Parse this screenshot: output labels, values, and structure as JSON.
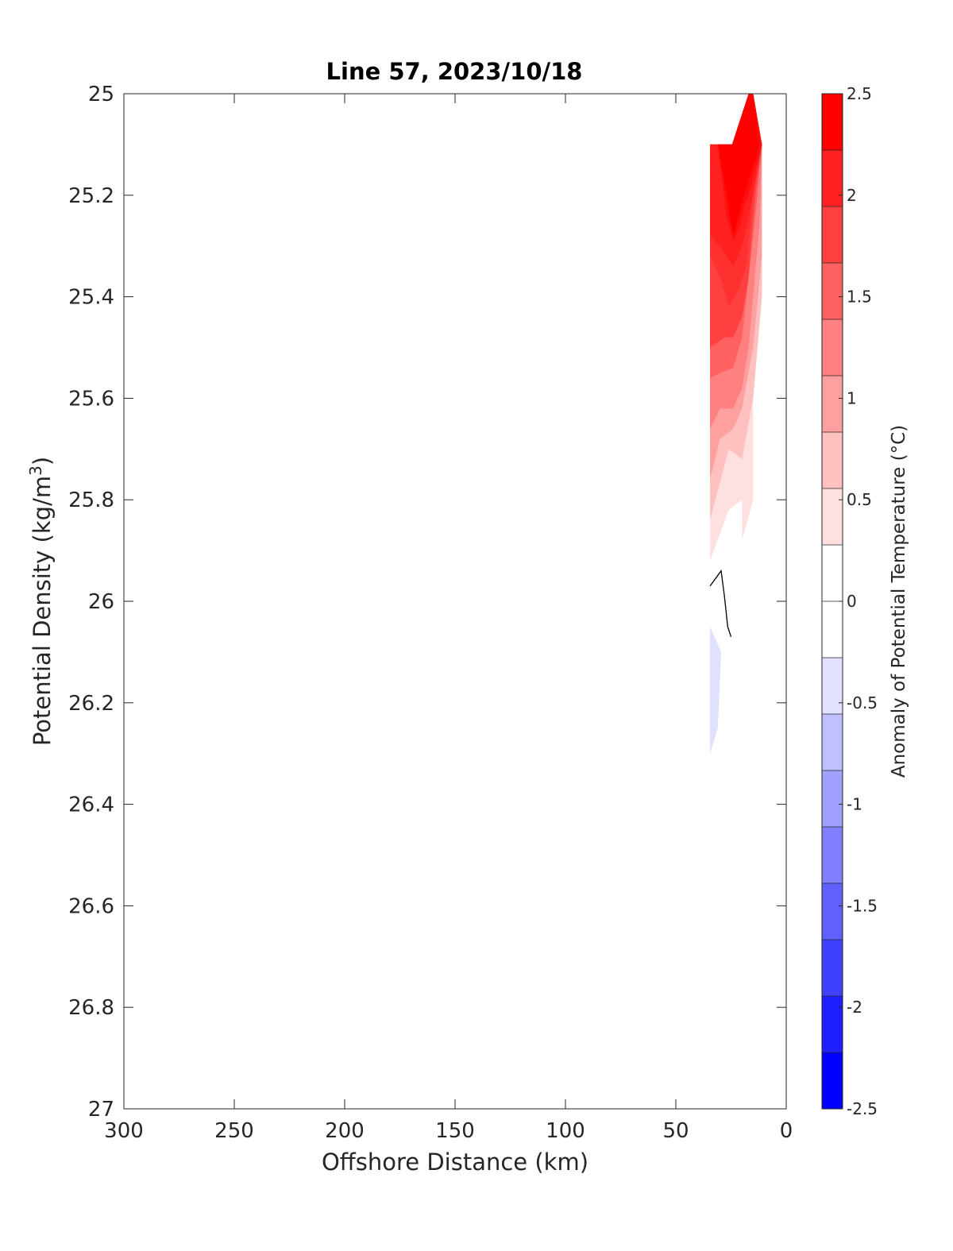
{
  "chart_data": {
    "type": "contour",
    "title": "Line 57, 2023/10/18",
    "xlabel": "Offshore Distance (km)",
    "ylabel": "Potential Density (kg/m",
    "ylabel_superscript": "3",
    "ylabel_suffix": ")",
    "x_axis_reversed": true,
    "y_axis_reversed": true,
    "xlim": [
      300,
      0
    ],
    "ylim": [
      25,
      27
    ],
    "x_ticks": [
      300,
      250,
      200,
      150,
      100,
      50,
      0
    ],
    "x_tick_labels": [
      "300",
      "250",
      "200",
      "150",
      "100",
      "50",
      "0"
    ],
    "y_ticks": [
      25,
      25.2,
      25.4,
      25.6,
      25.8,
      26,
      26.2,
      26.4,
      26.6,
      26.8,
      27
    ],
    "y_tick_labels": [
      "25",
      "25.2",
      "25.4",
      "25.6",
      "25.8",
      "26",
      "26.2",
      "26.4",
      "26.6",
      "26.8",
      "27"
    ],
    "colorbar": {
      "label": "Anomaly of Potential Temperature (°C)",
      "range": [
        -2.5,
        2.5
      ],
      "step": 0.25,
      "ticks": [
        2.5,
        2,
        1.5,
        1,
        0.5,
        0,
        -0.5,
        -1,
        -1.5,
        -2,
        -2.5
      ],
      "tick_labels": [
        "2.5",
        "2",
        "1.5",
        "1",
        "0.5",
        "0",
        "-0.5",
        "-1",
        "-1.5",
        "-2",
        "-2.5"
      ],
      "colors": [
        "#ff0000",
        "#ff2020",
        "#ff4040",
        "#ff6060",
        "#ff8080",
        "#ffa0a0",
        "#ffc0c0",
        "#ffe0e0",
        "#ffffff",
        "#ffffff",
        "#e0e0ff",
        "#c0c0ff",
        "#a0a0ff",
        "#8080ff",
        "#6060ff",
        "#4040ff",
        "#2020ff",
        "#0000ff"
      ]
    },
    "contour_regions": [
      {
        "level": 0.0,
        "color": "#ffe0e0",
        "points": [
          [
            34.5,
            25.1
          ],
          [
            24.5,
            25.1
          ],
          [
            17,
            25
          ],
          [
            15,
            25
          ],
          [
            11,
            25.1
          ],
          [
            11,
            25.4
          ],
          [
            15,
            25.6
          ],
          [
            15,
            25.8
          ],
          [
            20,
            25.88
          ],
          [
            20,
            25.8
          ],
          [
            26,
            25.82
          ],
          [
            34.5,
            25.92
          ]
        ]
      },
      {
        "level": 0.25,
        "color": "#ffc0c0",
        "points": [
          [
            34.5,
            25.1
          ],
          [
            24.5,
            25.1
          ],
          [
            17,
            25
          ],
          [
            15,
            25
          ],
          [
            11,
            25.1
          ],
          [
            11,
            25.4
          ],
          [
            15,
            25.6
          ],
          [
            20,
            25.72
          ],
          [
            26,
            25.7
          ],
          [
            34.5,
            25.84
          ]
        ]
      },
      {
        "level": 0.5,
        "color": "#ffa0a0",
        "points": [
          [
            34.5,
            25.1
          ],
          [
            24.5,
            25.1
          ],
          [
            17,
            25
          ],
          [
            15,
            25
          ],
          [
            11,
            25.1
          ],
          [
            11,
            25.32
          ],
          [
            15,
            25.5
          ],
          [
            20,
            25.62
          ],
          [
            24,
            25.66
          ],
          [
            30,
            25.68
          ],
          [
            34.5,
            25.76
          ]
        ]
      },
      {
        "level": 0.75,
        "color": "#ff8080",
        "points": [
          [
            34.5,
            25.1
          ],
          [
            24.5,
            25.1
          ],
          [
            17,
            25
          ],
          [
            15,
            25
          ],
          [
            11,
            25.1
          ],
          [
            12,
            25.25
          ],
          [
            17,
            25.5
          ],
          [
            20,
            25.58
          ],
          [
            24,
            25.62
          ],
          [
            30,
            25.62
          ],
          [
            34.5,
            25.66
          ]
        ]
      },
      {
        "level": 1.0,
        "color": "#ff6060",
        "points": [
          [
            34.5,
            25.1
          ],
          [
            24.5,
            25.1
          ],
          [
            17,
            25
          ],
          [
            15,
            25
          ],
          [
            11,
            25.1
          ],
          [
            13,
            25.2
          ],
          [
            20,
            25.48
          ],
          [
            24,
            25.54
          ],
          [
            30,
            25.55
          ],
          [
            34.5,
            25.56
          ]
        ]
      },
      {
        "level": 1.25,
        "color": "#ff4040",
        "points": [
          [
            34.5,
            25.1
          ],
          [
            24.5,
            25.1
          ],
          [
            17,
            25
          ],
          [
            15,
            25
          ],
          [
            11,
            25.1
          ],
          [
            14,
            25.2
          ],
          [
            17,
            25.36
          ],
          [
            20,
            25.44
          ],
          [
            24,
            25.48
          ],
          [
            28,
            25.48
          ],
          [
            34.5,
            25.5
          ]
        ]
      },
      {
        "level": 1.5,
        "color": "#ff3030",
        "points": [
          [
            34.5,
            25.1
          ],
          [
            24.5,
            25.1
          ],
          [
            17,
            25
          ],
          [
            15,
            25
          ],
          [
            11,
            25.1
          ],
          [
            15,
            25.2
          ],
          [
            18,
            25.34
          ],
          [
            21,
            25.38
          ],
          [
            26,
            25.42
          ],
          [
            30,
            25.36
          ],
          [
            34.5,
            25.32
          ]
        ]
      },
      {
        "level": 1.75,
        "color": "#ff2020",
        "points": [
          [
            34.5,
            25.1
          ],
          [
            24.5,
            25.1
          ],
          [
            17,
            25
          ],
          [
            15,
            25
          ],
          [
            11,
            25.1
          ],
          [
            16,
            25.22
          ],
          [
            20,
            25.3
          ],
          [
            24,
            25.34
          ],
          [
            30,
            25.3
          ],
          [
            34.5,
            25.28
          ]
        ]
      },
      {
        "level": 2.0,
        "color": "#ff1010",
        "points": [
          [
            34.5,
            25.1
          ],
          [
            24.5,
            25.1
          ],
          [
            17,
            25
          ],
          [
            15,
            25
          ],
          [
            11,
            25.1
          ],
          [
            17,
            25.2
          ],
          [
            19,
            25.22
          ],
          [
            21,
            25.26
          ],
          [
            24,
            25.29
          ],
          [
            27,
            25.24
          ],
          [
            31,
            25.1
          ]
        ]
      },
      {
        "level": 2.25,
        "color": "#ff0000",
        "points": [
          [
            34.5,
            25.1
          ],
          [
            24.5,
            25.1
          ],
          [
            17,
            25
          ],
          [
            15,
            25
          ],
          [
            12,
            25.1
          ],
          [
            19,
            25.2
          ],
          [
            24,
            25.28
          ],
          [
            27,
            25.2
          ],
          [
            31,
            25.1
          ]
        ]
      },
      {
        "level": -0.25,
        "color": "#e0e0ff",
        "points": [
          [
            34.5,
            26.05
          ],
          [
            29.5,
            26.1
          ],
          [
            31,
            26.25
          ],
          [
            34.5,
            26.3
          ]
        ]
      }
    ],
    "contour_lines": [
      {
        "level": 0.0,
        "color": "#000000",
        "points": [
          [
            34.5,
            25.97
          ],
          [
            29.5,
            25.94
          ],
          [
            28,
            25.99
          ],
          [
            26.5,
            26.05
          ],
          [
            25,
            26.07
          ]
        ]
      }
    ]
  }
}
